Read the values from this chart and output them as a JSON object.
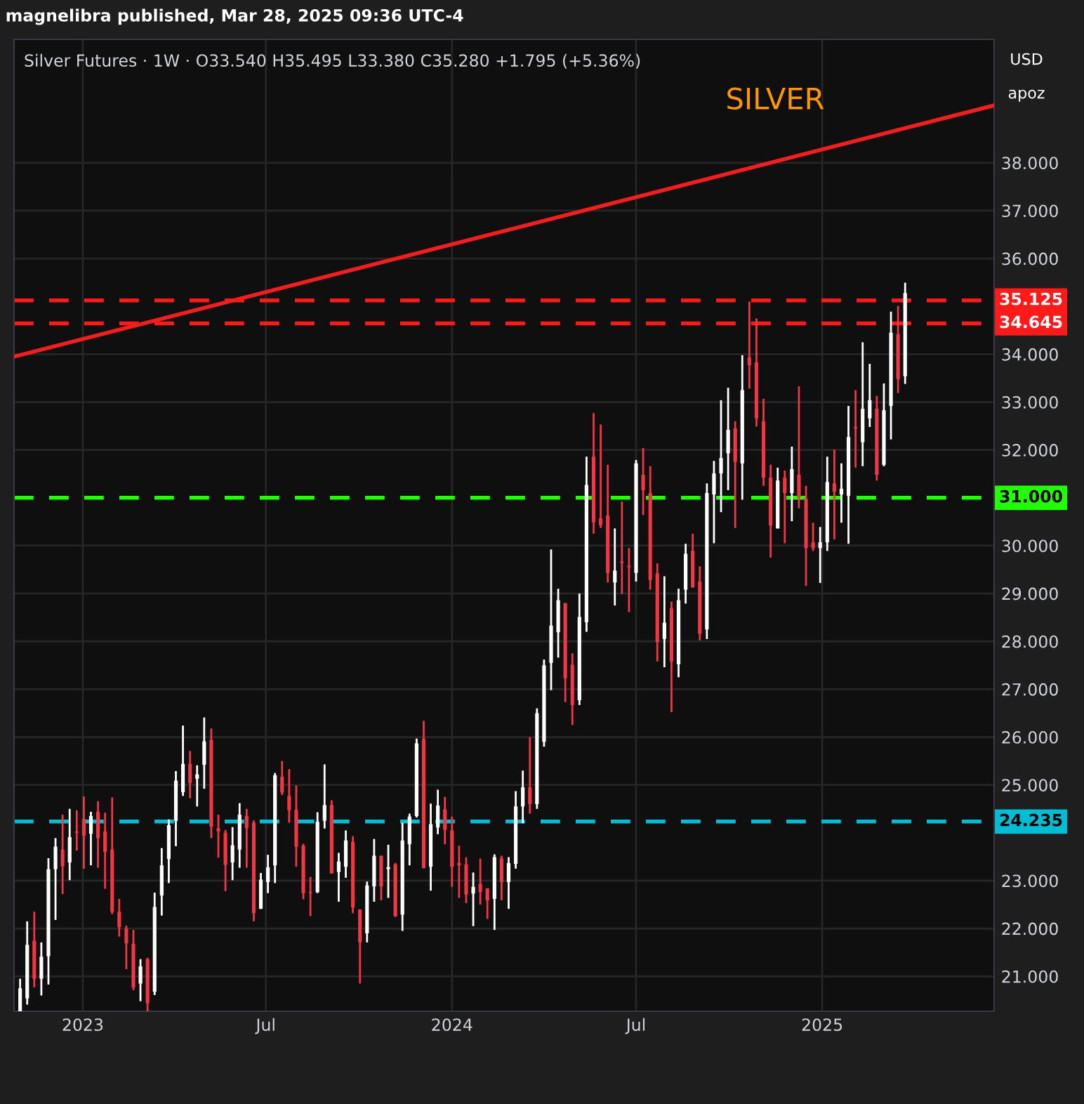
{
  "chart_data": {
    "type": "candlestick",
    "title": "Silver Futures · 1W · O33.540 H35.495 L33.380 C35.280 +1.795 (+5.36%)",
    "annotations": [
      "magnelibra published, Mar 28, 2025 09:36 UTC-4",
      "SILVER",
      "USD",
      "apoz"
    ],
    "x": [
      "2022-10-31",
      "2022-11-07",
      "2022-11-14",
      "2022-11-21",
      "2022-11-28",
      "2022-12-05",
      "2022-12-12",
      "2022-12-19",
      "2022-12-26",
      "2023-01-02",
      "2023-01-09",
      "2023-01-16",
      "2023-01-23",
      "2023-01-30",
      "2023-02-06",
      "2023-02-13",
      "2023-02-20",
      "2023-02-27",
      "2023-03-06",
      "2023-03-13",
      "2023-03-20",
      "2023-03-27",
      "2023-04-03",
      "2023-04-10",
      "2023-04-17",
      "2023-04-24",
      "2023-05-01",
      "2023-05-08",
      "2023-05-15",
      "2023-05-22",
      "2023-05-29",
      "2023-06-05",
      "2023-06-12",
      "2023-06-19",
      "2023-06-26",
      "2023-07-03",
      "2023-07-10",
      "2023-07-17",
      "2023-07-24",
      "2023-07-31",
      "2023-08-07",
      "2023-08-14",
      "2023-08-21",
      "2023-08-28",
      "2023-09-04",
      "2023-09-11",
      "2023-09-18",
      "2023-09-25",
      "2023-10-02",
      "2023-10-09",
      "2023-10-16",
      "2023-10-23",
      "2023-10-30",
      "2023-11-06",
      "2023-11-13",
      "2023-11-20",
      "2023-11-27",
      "2023-12-04",
      "2023-12-11",
      "2023-12-18",
      "2023-12-25",
      "2024-01-01",
      "2024-01-08",
      "2024-01-15",
      "2024-01-22",
      "2024-01-29",
      "2024-02-05",
      "2024-02-12",
      "2024-02-19",
      "2024-02-26",
      "2024-03-04",
      "2024-03-11",
      "2024-03-18",
      "2024-03-25",
      "2024-04-01",
      "2024-04-08",
      "2024-04-15",
      "2024-04-22",
      "2024-04-29",
      "2024-05-06",
      "2024-05-13",
      "2024-05-20",
      "2024-05-27",
      "2024-06-03",
      "2024-06-10",
      "2024-06-17",
      "2024-06-24",
      "2024-07-01",
      "2024-07-08",
      "2024-07-15",
      "2024-07-22",
      "2024-07-29",
      "2024-08-05",
      "2024-08-12",
      "2024-08-19",
      "2024-08-26",
      "2024-09-02",
      "2024-09-09",
      "2024-09-16",
      "2024-09-23",
      "2024-09-30",
      "2024-10-07",
      "2024-10-14",
      "2024-10-21",
      "2024-10-28",
      "2024-11-04",
      "2024-11-11",
      "2024-11-18",
      "2024-11-25",
      "2024-12-02",
      "2024-12-09",
      "2024-12-16",
      "2024-12-23",
      "2024-12-30",
      "2025-01-06",
      "2025-01-13",
      "2025-01-20",
      "2025-01-27",
      "2025-02-03",
      "2025-02-10",
      "2025-02-17",
      "2025-02-24",
      "2025-03-03",
      "2025-03-10",
      "2025-03-17",
      "2025-03-24"
    ],
    "ohlc": [
      [
        20.19,
        20.95,
        20.19,
        20.75
      ],
      [
        20.54,
        22.15,
        20.41,
        21.66
      ],
      [
        21.74,
        22.35,
        20.77,
        20.95
      ],
      [
        20.95,
        21.71,
        20.6,
        21.41
      ],
      [
        21.42,
        23.47,
        20.83,
        23.24
      ],
      [
        23.24,
        23.89,
        22.18,
        23.71
      ],
      [
        23.65,
        24.38,
        22.72,
        23.3
      ],
      [
        23.38,
        24.5,
        23.01,
        23.91
      ],
      [
        24.03,
        24.47,
        23.63,
        24.0
      ],
      [
        24.29,
        24.76,
        23.25,
        23.94
      ],
      [
        23.98,
        24.44,
        23.32,
        24.35
      ],
      [
        24.44,
        24.66,
        23.27,
        23.89
      ],
      [
        24.03,
        24.42,
        22.83,
        23.6
      ],
      [
        23.65,
        24.74,
        22.3,
        22.35
      ],
      [
        22.35,
        22.62,
        21.83,
        22.03
      ],
      [
        22.0,
        22.06,
        21.15,
        21.69
      ],
      [
        21.68,
        21.97,
        20.71,
        20.77
      ],
      [
        20.85,
        21.36,
        20.48,
        21.21
      ],
      [
        21.36,
        21.39,
        20.19,
        20.44
      ],
      [
        20.68,
        22.75,
        20.61,
        22.45
      ],
      [
        22.69,
        23.68,
        22.27,
        23.32
      ],
      [
        23.45,
        24.28,
        22.95,
        24.16
      ],
      [
        24.25,
        25.29,
        23.72,
        25.09
      ],
      [
        24.85,
        26.24,
        24.77,
        25.44
      ],
      [
        25.44,
        25.71,
        24.72,
        25.04
      ],
      [
        25.13,
        25.41,
        24.55,
        25.22
      ],
      [
        25.42,
        26.41,
        24.92,
        25.91
      ],
      [
        25.94,
        26.18,
        23.89,
        24.13
      ],
      [
        24.09,
        24.38,
        23.48,
        24.03
      ],
      [
        24.0,
        24.06,
        22.78,
        23.33
      ],
      [
        23.38,
        24.12,
        23.01,
        23.74
      ],
      [
        23.65,
        24.62,
        23.27,
        24.38
      ],
      [
        24.35,
        24.5,
        23.27,
        24.1
      ],
      [
        24.21,
        24.26,
        22.15,
        22.32
      ],
      [
        22.41,
        23.16,
        22.41,
        23.02
      ],
      [
        22.97,
        23.54,
        22.74,
        23.28
      ],
      [
        23.32,
        25.25,
        22.95,
        25.2
      ],
      [
        25.17,
        25.5,
        24.79,
        24.84
      ],
      [
        24.77,
        25.33,
        24.21,
        24.47
      ],
      [
        24.48,
        24.99,
        23.29,
        23.71
      ],
      [
        23.73,
        23.77,
        22.61,
        22.74
      ],
      [
        22.76,
        23.08,
        22.26,
        22.74
      ],
      [
        22.76,
        24.43,
        22.74,
        24.23
      ],
      [
        24.25,
        25.43,
        24.09,
        24.58
      ],
      [
        24.58,
        24.68,
        23.15,
        23.15
      ],
      [
        23.18,
        23.58,
        22.56,
        23.4
      ],
      [
        23.29,
        24.05,
        23.06,
        23.84
      ],
      [
        23.81,
        23.93,
        22.32,
        22.44
      ],
      [
        22.4,
        22.4,
        20.85,
        21.71
      ],
      [
        21.9,
        22.98,
        21.71,
        22.9
      ],
      [
        22.88,
        23.87,
        22.56,
        23.52
      ],
      [
        23.52,
        23.52,
        22.59,
        22.88
      ],
      [
        23.24,
        23.75,
        22.64,
        23.28
      ],
      [
        23.34,
        23.37,
        22.24,
        22.26
      ],
      [
        22.29,
        24.21,
        21.95,
        23.84
      ],
      [
        23.76,
        24.4,
        23.32,
        24.34
      ],
      [
        24.35,
        25.97,
        24.32,
        25.87
      ],
      [
        25.96,
        26.34,
        23.26,
        23.26
      ],
      [
        23.29,
        24.61,
        22.79,
        24.18
      ],
      [
        24.11,
        24.9,
        23.97,
        24.57
      ],
      [
        24.49,
        24.75,
        23.76,
        24.06
      ],
      [
        24.05,
        24.34,
        22.87,
        23.29
      ],
      [
        23.37,
        23.73,
        22.64,
        23.32
      ],
      [
        23.34,
        23.49,
        22.53,
        22.71
      ],
      [
        22.73,
        23.17,
        22.05,
        22.87
      ],
      [
        22.93,
        23.46,
        22.5,
        22.76
      ],
      [
        22.84,
        22.84,
        22.2,
        22.59
      ],
      [
        22.62,
        23.55,
        21.97,
        23.49
      ],
      [
        23.46,
        23.52,
        22.59,
        22.97
      ],
      [
        22.97,
        23.49,
        22.41,
        23.37
      ],
      [
        23.35,
        24.87,
        23.25,
        24.55
      ],
      [
        24.55,
        25.3,
        24.2,
        24.95
      ],
      [
        24.95,
        26.0,
        24.4,
        24.6
      ],
      [
        24.6,
        26.6,
        24.5,
        26.5
      ],
      [
        25.9,
        27.62,
        25.8,
        27.5
      ],
      [
        27.55,
        29.92,
        26.98,
        28.33
      ],
      [
        28.19,
        29.1,
        27.66,
        28.86
      ],
      [
        28.8,
        28.8,
        26.73,
        27.23
      ],
      [
        27.51,
        27.75,
        26.25,
        26.67
      ],
      [
        26.77,
        29.0,
        26.67,
        28.51
      ],
      [
        28.4,
        31.86,
        28.2,
        31.27
      ],
      [
        31.86,
        32.77,
        30.25,
        30.49
      ],
      [
        30.57,
        32.53,
        30.37,
        30.43
      ],
      [
        30.63,
        31.69,
        29.23,
        29.43
      ],
      [
        29.23,
        30.36,
        28.75,
        29.48
      ],
      [
        29.67,
        30.92,
        28.99,
        29.64
      ],
      [
        29.58,
        29.95,
        28.61,
        29.55
      ],
      [
        29.43,
        31.79,
        29.25,
        31.72
      ],
      [
        31.48,
        32.04,
        30.64,
        31.16
      ],
      [
        31.1,
        31.66,
        29.08,
        29.28
      ],
      [
        29.42,
        29.63,
        27.58,
        27.99
      ],
      [
        28.05,
        29.36,
        27.46,
        28.39
      ],
      [
        28.69,
        28.83,
        26.52,
        27.58
      ],
      [
        27.52,
        29.1,
        27.25,
        28.86
      ],
      [
        29.08,
        30.04,
        28.79,
        29.83
      ],
      [
        29.89,
        30.25,
        29.12,
        29.13
      ],
      [
        29.25,
        29.57,
        28.02,
        28.16
      ],
      [
        28.25,
        31.3,
        28.05,
        31.1
      ],
      [
        31.07,
        31.77,
        30.05,
        31.51
      ],
      [
        31.51,
        33.04,
        30.7,
        31.83
      ],
      [
        31.93,
        33.3,
        31.16,
        32.42
      ],
      [
        32.45,
        32.6,
        30.37,
        31.75
      ],
      [
        31.72,
        33.98,
        30.96,
        33.25
      ],
      [
        33.93,
        35.1,
        33.28,
        33.77
      ],
      [
        33.83,
        34.75,
        32.49,
        32.66
      ],
      [
        32.6,
        33.07,
        31.25,
        31.42
      ],
      [
        31.42,
        31.69,
        29.75,
        30.42
      ],
      [
        30.36,
        31.63,
        30.36,
        31.36
      ],
      [
        31.42,
        31.57,
        30.05,
        31.1
      ],
      [
        31.1,
        32.07,
        30.51,
        31.6
      ],
      [
        31.48,
        33.33,
        30.78,
        31.01
      ],
      [
        30.98,
        31.25,
        29.16,
        29.95
      ],
      [
        30.07,
        30.48,
        29.89,
        29.95
      ],
      [
        29.95,
        30.39,
        29.22,
        30.07
      ],
      [
        30.07,
        31.86,
        29.89,
        31.33
      ],
      [
        31.3,
        32.01,
        30.13,
        31.13
      ],
      [
        31.07,
        31.72,
        30.48,
        31.19
      ],
      [
        31.04,
        32.92,
        30.04,
        32.27
      ],
      [
        32.48,
        33.25,
        31.63,
        32.45
      ],
      [
        32.16,
        34.25,
        31.66,
        32.86
      ],
      [
        32.66,
        33.8,
        32.48,
        33.04
      ],
      [
        32.86,
        33.13,
        31.36,
        31.48
      ],
      [
        31.69,
        33.39,
        31.66,
        32.83
      ],
      [
        32.92,
        34.89,
        32.22,
        34.45
      ],
      [
        34.42,
        35.01,
        33.19,
        33.48
      ],
      [
        33.54,
        35.495,
        33.38,
        35.28
      ]
    ],
    "colors": [
      "#ffffff",
      "#ffffff",
      "#f23645",
      "#ffffff",
      "#ffffff",
      "#ffffff",
      "#f23645",
      "#ffffff",
      "#f23645",
      "#f23645",
      "#ffffff",
      "#f23645",
      "#f23645",
      "#f23645",
      "#f23645",
      "#f23645",
      "#f23645",
      "#ffffff",
      "#f23645",
      "#ffffff",
      "#ffffff",
      "#ffffff",
      "#ffffff",
      "#ffffff",
      "#f23645",
      "#ffffff",
      "#ffffff",
      "#f23645",
      "#f23645",
      "#f23645",
      "#ffffff",
      "#ffffff",
      "#f23645",
      "#f23645",
      "#ffffff",
      "#ffffff",
      "#ffffff",
      "#f23645",
      "#f23645",
      "#f23645",
      "#f23645",
      "#f23645",
      "#ffffff",
      "#ffffff",
      "#f23645",
      "#ffffff",
      "#ffffff",
      "#f23645",
      "#f23645",
      "#ffffff",
      "#ffffff",
      "#f23645",
      "#ffffff",
      "#f23645",
      "#ffffff",
      "#ffffff",
      "#ffffff",
      "#f23645",
      "#ffffff",
      "#ffffff",
      "#f23645",
      "#f23645",
      "#f23645",
      "#f23645",
      "#ffffff",
      "#f23645",
      "#f23645",
      "#ffffff",
      "#f23645",
      "#ffffff",
      "#ffffff",
      "#ffffff",
      "#f23645",
      "#ffffff",
      "#ffffff",
      "#ffffff",
      "#ffffff",
      "#f23645",
      "#f23645",
      "#ffffff",
      "#ffffff",
      "#f23645",
      "#f23645",
      "#f23645",
      "#ffffff",
      "#f23645",
      "#f23645",
      "#ffffff",
      "#f23645",
      "#f23645",
      "#f23645",
      "#ffffff",
      "#f23645",
      "#ffffff",
      "#ffffff",
      "#f23645",
      "#f23645",
      "#ffffff",
      "#ffffff",
      "#ffffff",
      "#ffffff",
      "#f23645",
      "#ffffff",
      "#f23645",
      "#f23645",
      "#f23645",
      "#f23645",
      "#ffffff",
      "#f23645",
      "#ffffff",
      "#f23645",
      "#f23645",
      "#f23645",
      "#ffffff",
      "#ffffff",
      "#f23645",
      "#ffffff",
      "#ffffff",
      "#f23645",
      "#ffffff",
      "#ffffff",
      "#f23645",
      "#ffffff",
      "#ffffff",
      "#f23645",
      "#ffffff"
    ],
    "series": [
      {
        "type": "line",
        "x": [
          "2022-10-25",
          "2025-06-20"
        ],
        "values": [
          33.95,
          39.2
        ],
        "color": "#f01e1e"
      }
    ],
    "ref_lines": [
      {
        "axis": "y",
        "value": 35.125,
        "label": "35.125",
        "color": "#ff1a1a",
        "line_style": "dashed"
      },
      {
        "axis": "y",
        "value": 34.645,
        "label": "34.645",
        "color": "#ff1a1a",
        "line_style": "dashed"
      },
      {
        "axis": "y",
        "value": 31.0,
        "label": "31.000",
        "color": "#22ff00",
        "line_style": "dashed"
      },
      {
        "axis": "y",
        "value": 24.235,
        "label": "24.235",
        "color": "#00bcd4",
        "line_style": "dashed"
      }
    ],
    "xlim": [
      "2022-10-25",
      "2025-06-20"
    ],
    "xticks": [
      {
        "value": "2023-01-01",
        "label": "2023"
      },
      {
        "value": "2023-07-01",
        "label": "Jul"
      },
      {
        "value": "2024-01-01",
        "label": "2024"
      },
      {
        "value": "2024-07-01",
        "label": "Jul"
      },
      {
        "value": "2025-01-01",
        "label": "2025"
      }
    ],
    "ylim": [
      20.27,
      40.58
    ],
    "yticks": [
      {
        "value": 21,
        "label": "21.000"
      },
      {
        "value": 22,
        "label": "22.000"
      },
      {
        "value": 23,
        "label": "23.000"
      },
      {
        "value": 25,
        "label": "25.000"
      },
      {
        "value": 26,
        "label": "26.000"
      },
      {
        "value": 27,
        "label": "27.000"
      },
      {
        "value": 28,
        "label": "28.000"
      },
      {
        "value": 29,
        "label": "29.000"
      },
      {
        "value": 30,
        "label": "30.000"
      },
      {
        "value": 32,
        "label": "32.000"
      },
      {
        "value": 33,
        "label": "33.000"
      },
      {
        "value": 34,
        "label": "34.000"
      },
      {
        "value": 36,
        "label": "36.000"
      },
      {
        "value": 37,
        "label": "37.000"
      },
      {
        "value": 38,
        "label": "38.000"
      }
    ],
    "grid": true
  }
}
